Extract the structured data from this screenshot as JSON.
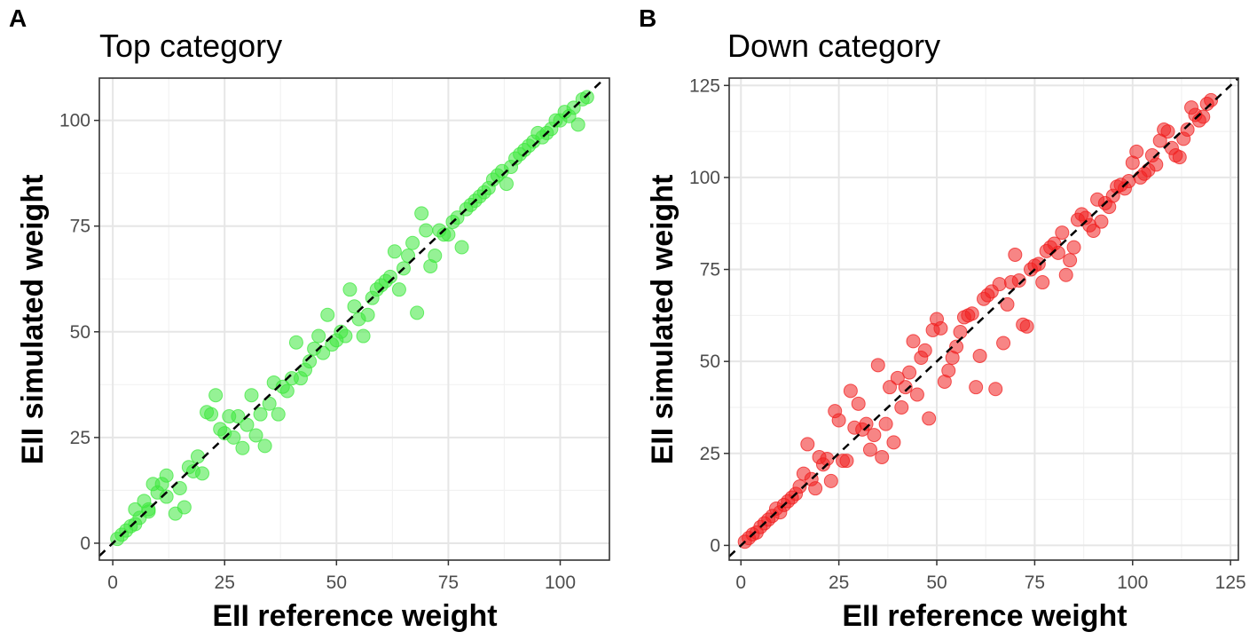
{
  "chart_data": [
    {
      "type": "scatter",
      "panel_label": "A",
      "title": "Top category",
      "xlabel": "EII reference weight",
      "ylabel": "EII simulated weight",
      "xlim": [
        -3,
        111
      ],
      "ylim": [
        -4,
        110
      ],
      "xticks": [
        0,
        25,
        50,
        75,
        100
      ],
      "yticks": [
        0,
        25,
        50,
        75,
        100
      ],
      "grid": true,
      "reference_line": "y = x (dashed)",
      "point_color": "#3ee83e",
      "series": [
        {
          "name": "Top category",
          "points": [
            [
              1,
              1
            ],
            [
              2,
              2
            ],
            [
              3,
              3
            ],
            [
              4,
              4
            ],
            [
              5,
              4.5
            ],
            [
              5,
              8
            ],
            [
              6,
              6
            ],
            [
              7,
              10
            ],
            [
              8,
              8
            ],
            [
              8,
              7.5
            ],
            [
              9,
              14
            ],
            [
              10,
              12
            ],
            [
              11,
              14
            ],
            [
              12,
              11
            ],
            [
              12,
              16
            ],
            [
              14,
              7
            ],
            [
              15,
              13
            ],
            [
              16,
              8.5
            ],
            [
              17,
              18
            ],
            [
              18,
              17
            ],
            [
              19,
              20.5
            ],
            [
              20,
              16.5
            ],
            [
              21,
              31
            ],
            [
              22,
              30.5
            ],
            [
              23,
              35
            ],
            [
              24,
              27
            ],
            [
              25,
              26
            ],
            [
              26,
              30
            ],
            [
              27,
              25
            ],
            [
              28,
              30
            ],
            [
              29,
              22.5
            ],
            [
              30,
              28
            ],
            [
              31,
              35
            ],
            [
              32,
              25.5
            ],
            [
              33,
              30.5
            ],
            [
              34,
              23
            ],
            [
              35,
              33
            ],
            [
              36,
              38
            ],
            [
              37,
              30.5
            ],
            [
              38,
              37
            ],
            [
              39,
              36
            ],
            [
              40,
              39
            ],
            [
              41,
              47.5
            ],
            [
              42,
              39
            ],
            [
              43,
              41
            ],
            [
              44,
              43
            ],
            [
              45,
              46
            ],
            [
              46,
              49
            ],
            [
              47,
              45
            ],
            [
              48,
              54
            ],
            [
              49,
              47
            ],
            [
              50,
              48
            ],
            [
              51,
              50
            ],
            [
              52,
              49
            ],
            [
              53,
              60
            ],
            [
              54,
              56
            ],
            [
              55,
              53
            ],
            [
              56,
              49
            ],
            [
              57,
              54
            ],
            [
              58,
              58
            ],
            [
              59,
              60
            ],
            [
              60,
              61
            ],
            [
              61,
              62
            ],
            [
              62,
              63
            ],
            [
              63,
              69
            ],
            [
              64,
              60
            ],
            [
              65,
              65
            ],
            [
              66,
              68
            ],
            [
              67,
              71
            ],
            [
              68,
              54.5
            ],
            [
              69,
              78
            ],
            [
              70,
              74
            ],
            [
              71,
              65.5
            ],
            [
              72,
              68
            ],
            [
              73,
              74
            ],
            [
              74,
              73
            ],
            [
              75,
              73
            ],
            [
              76,
              76
            ],
            [
              77,
              77
            ],
            [
              78,
              70
            ],
            [
              79,
              79
            ],
            [
              80,
              80
            ],
            [
              81,
              81
            ],
            [
              82,
              82
            ],
            [
              83,
              83
            ],
            [
              84,
              84
            ],
            [
              85,
              86
            ],
            [
              86,
              87
            ],
            [
              87,
              88
            ],
            [
              88,
              85
            ],
            [
              89,
              89
            ],
            [
              90,
              91
            ],
            [
              91,
              92
            ],
            [
              92,
              93
            ],
            [
              93,
              94
            ],
            [
              94,
              95
            ],
            [
              95,
              97
            ],
            [
              96,
              96
            ],
            [
              97,
              97
            ],
            [
              98,
              98
            ],
            [
              99,
              100
            ],
            [
              100,
              100
            ],
            [
              101,
              102
            ],
            [
              102,
              101
            ],
            [
              103,
              103
            ],
            [
              104,
              99
            ],
            [
              105,
              105
            ],
            [
              106,
              105.5
            ]
          ]
        }
      ],
      "x_tick_labels": [
        "0",
        "25",
        "50",
        "75",
        "100"
      ],
      "y_tick_labels": [
        "0",
        "25",
        "50",
        "75",
        "100"
      ]
    },
    {
      "type": "scatter",
      "panel_label": "B",
      "title": "Down category",
      "xlabel": "EII reference weight",
      "ylabel": "EII simulated weight",
      "xlim": [
        -3,
        127
      ],
      "ylim": [
        -4,
        127
      ],
      "xticks": [
        0,
        25,
        50,
        75,
        100,
        125
      ],
      "yticks": [
        0,
        25,
        50,
        75,
        100,
        125
      ],
      "grid": true,
      "reference_line": "y = x (dashed)",
      "point_color": "#f02020",
      "series": [
        {
          "name": "Down category",
          "points": [
            [
              1,
              1
            ],
            [
              2,
              2
            ],
            [
              3,
              3
            ],
            [
              4,
              3.5
            ],
            [
              5,
              5
            ],
            [
              6,
              6
            ],
            [
              7,
              7
            ],
            [
              8,
              8
            ],
            [
              9,
              10
            ],
            [
              10,
              9
            ],
            [
              11,
              11
            ],
            [
              12,
              12
            ],
            [
              13,
              13
            ],
            [
              14,
              14
            ],
            [
              15,
              16
            ],
            [
              16,
              19.5
            ],
            [
              17,
              27.5
            ],
            [
              18,
              18
            ],
            [
              19,
              15.5
            ],
            [
              20,
              24
            ],
            [
              21,
              22
            ],
            [
              22,
              23.5
            ],
            [
              23,
              17.5
            ],
            [
              24,
              36.5
            ],
            [
              25,
              34
            ],
            [
              26,
              23
            ],
            [
              27,
              23
            ],
            [
              28,
              42
            ],
            [
              29,
              32
            ],
            [
              30,
              38.5
            ],
            [
              31,
              31.5
            ],
            [
              32,
              33
            ],
            [
              33,
              26
            ],
            [
              34,
              30
            ],
            [
              35,
              49
            ],
            [
              36,
              24
            ],
            [
              37,
              33
            ],
            [
              38,
              43
            ],
            [
              39,
              28
            ],
            [
              40,
              45.5
            ],
            [
              41,
              37.5
            ],
            [
              42,
              43
            ],
            [
              43,
              47
            ],
            [
              44,
              55.5
            ],
            [
              45,
              41
            ],
            [
              46,
              51
            ],
            [
              47,
              53
            ],
            [
              48,
              34.5
            ],
            [
              49,
              58.5
            ],
            [
              50,
              61.5
            ],
            [
              51,
              59
            ],
            [
              52,
              44.5
            ],
            [
              53,
              47.5
            ],
            [
              54,
              51
            ],
            [
              55,
              54
            ],
            [
              56,
              58
            ],
            [
              57,
              62
            ],
            [
              58,
              62.5
            ],
            [
              59,
              63
            ],
            [
              60,
              43
            ],
            [
              61,
              51.5
            ],
            [
              62,
              67
            ],
            [
              63,
              68
            ],
            [
              64,
              69
            ],
            [
              65,
              42.5
            ],
            [
              66,
              71
            ],
            [
              67,
              55
            ],
            [
              68,
              65.5
            ],
            [
              69,
              71.5
            ],
            [
              70,
              79
            ],
            [
              71,
              72
            ],
            [
              72,
              60
            ],
            [
              73,
              59.5
            ],
            [
              74,
              75
            ],
            [
              75,
              76
            ],
            [
              76,
              76.5
            ],
            [
              77,
              71.5
            ],
            [
              78,
              80
            ],
            [
              79,
              81
            ],
            [
              80,
              82
            ],
            [
              81,
              79.5
            ],
            [
              82,
              85
            ],
            [
              83,
              73.5
            ],
            [
              84,
              77.5
            ],
            [
              85,
              81
            ],
            [
              86,
              88.5
            ],
            [
              87,
              90
            ],
            [
              88,
              89
            ],
            [
              89,
              87
            ],
            [
              90,
              85.5
            ],
            [
              91,
              94
            ],
            [
              92,
              88
            ],
            [
              93,
              93
            ],
            [
              94,
              92
            ],
            [
              95,
              95
            ],
            [
              96,
              97.5
            ],
            [
              97,
              98
            ],
            [
              98,
              97
            ],
            [
              99,
              99
            ],
            [
              100,
              104
            ],
            [
              101,
              107
            ],
            [
              102,
              100
            ],
            [
              103,
              101
            ],
            [
              104,
              102
            ],
            [
              105,
              106
            ],
            [
              106,
              103.5
            ],
            [
              107,
              110
            ],
            [
              108,
              113
            ],
            [
              109,
              112.5
            ],
            [
              110,
              108
            ],
            [
              111,
              106
            ],
            [
              112,
              105.5
            ],
            [
              113,
              110.5
            ],
            [
              114,
              113
            ],
            [
              115,
              119
            ],
            [
              116,
              117
            ],
            [
              117,
              115.5
            ],
            [
              118,
              116.5
            ],
            [
              119,
              120
            ],
            [
              120,
              121
            ]
          ]
        }
      ],
      "x_tick_labels": [
        "0",
        "25",
        "50",
        "75",
        "100",
        "125"
      ],
      "y_tick_labels": [
        "0",
        "25",
        "50",
        "75",
        "100",
        "125"
      ]
    }
  ]
}
